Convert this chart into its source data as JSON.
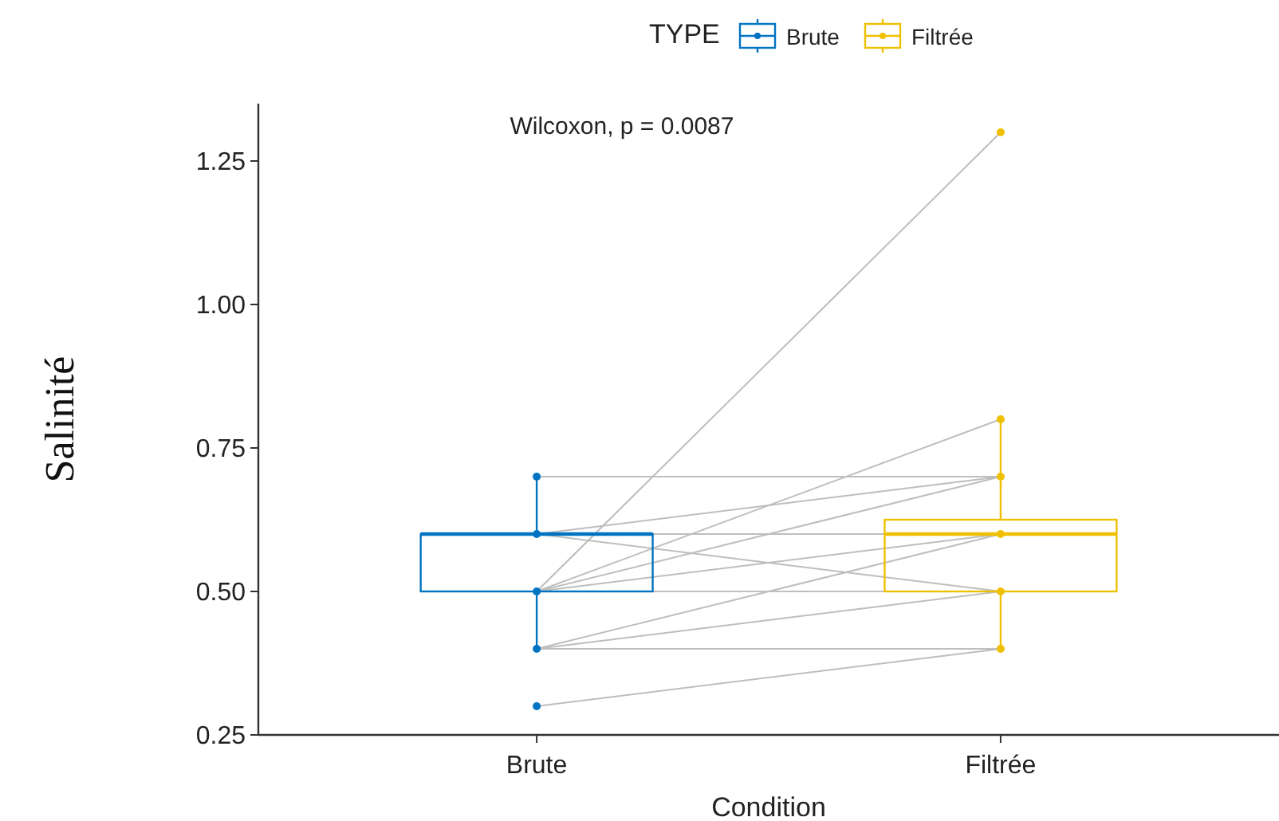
{
  "chart_data": {
    "type": "box",
    "xlabel": "Condition",
    "ylabel": "Salinité",
    "legend_title": "TYPE",
    "legend": "top",
    "categories": [
      "Brute",
      "Filtrée"
    ],
    "ylim": [
      0.25,
      1.35
    ],
    "yticks": [
      {
        "value": 0.25,
        "label": "0.25"
      },
      {
        "value": 0.5,
        "label": "0.50"
      },
      {
        "value": 0.75,
        "label": "0.75"
      },
      {
        "value": 1,
        "label": "1.00"
      },
      {
        "value": 1.25,
        "label": "1.25"
      }
    ],
    "grid": false,
    "annotations": [
      "Wilcoxon, p = 0.0087"
    ],
    "series": [
      {
        "type": "line",
        "color": "#bebebe",
        "x": [
          "Brute",
          "Filtrée"
        ],
        "values": [
          0.3,
          0.4
        ]
      },
      {
        "type": "line",
        "color": "#bebebe",
        "x": [
          "Brute",
          "Filtrée"
        ],
        "values": [
          0.4,
          0.4
        ]
      },
      {
        "type": "line",
        "color": "#bebebe",
        "x": [
          "Brute",
          "Filtrée"
        ],
        "values": [
          0.4,
          0.5
        ]
      },
      {
        "type": "line",
        "color": "#bebebe",
        "x": [
          "Brute",
          "Filtrée"
        ],
        "values": [
          0.4,
          0.6
        ]
      },
      {
        "type": "line",
        "color": "#bebebe",
        "x": [
          "Brute",
          "Filtrée"
        ],
        "values": [
          0.5,
          0.5
        ]
      },
      {
        "type": "line",
        "color": "#bebebe",
        "x": [
          "Brute",
          "Filtrée"
        ],
        "values": [
          0.5,
          0.6
        ]
      },
      {
        "type": "line",
        "color": "#bebebe",
        "x": [
          "Brute",
          "Filtrée"
        ],
        "values": [
          0.5,
          0.7
        ]
      },
      {
        "type": "line",
        "color": "#bebebe",
        "x": [
          "Brute",
          "Filtrée"
        ],
        "values": [
          0.5,
          0.8
        ]
      },
      {
        "type": "line",
        "color": "#bebebe",
        "x": [
          "Brute",
          "Filtrée"
        ],
        "values": [
          0.5,
          1.3
        ]
      },
      {
        "type": "line",
        "color": "#bebebe",
        "x": [
          "Brute",
          "Filtrée"
        ],
        "values": [
          0.6,
          0.6
        ]
      },
      {
        "type": "line",
        "color": "#bebebe",
        "x": [
          "Brute",
          "Filtrée"
        ],
        "values": [
          0.6,
          0.5
        ]
      },
      {
        "type": "line",
        "color": "#bebebe",
        "x": [
          "Brute",
          "Filtrée"
        ],
        "values": [
          0.6,
          0.7
        ]
      },
      {
        "type": "line",
        "color": "#bebebe",
        "x": [
          "Brute",
          "Filtrée"
        ],
        "values": [
          0.7,
          0.7
        ]
      },
      {
        "name": "Brute",
        "color": "#0073c2",
        "boxes": [
          {
            "low": 0.4,
            "q1": 0.5,
            "median": 0.6,
            "q3": 0.6,
            "high": 0.7
          },
          null
        ]
      },
      {
        "name": "Filtrée",
        "color": "#efc000",
        "boxes": [
          null,
          {
            "low": 0.4,
            "q1": 0.5,
            "median": 0.6,
            "q3": 0.625,
            "high": 0.8
          }
        ]
      },
      {
        "type": "scatter",
        "color": "#0073c2",
        "x": [
          "Brute",
          "Brute",
          "Brute",
          "Brute",
          "Brute"
        ],
        "values": [
          0.3,
          0.4,
          0.5,
          0.6,
          0.7
        ]
      },
      {
        "type": "scatter",
        "color": "#efc000",
        "x": [
          "Filtrée",
          "Filtrée",
          "Filtrée",
          "Filtrée",
          "Filtrée",
          "Filtrée"
        ],
        "values": [
          0.4,
          0.5,
          0.6,
          0.7,
          0.8,
          1.3
        ]
      }
    ]
  }
}
